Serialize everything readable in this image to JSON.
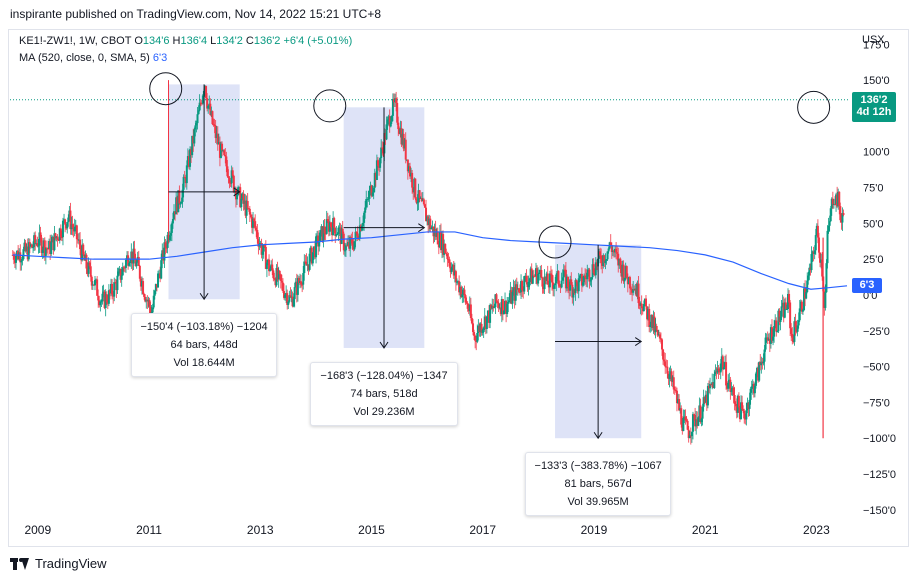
{
  "header": {
    "publisher": "inspirante published on TradingView.com, Nov 14, 2022 15:21 UTC+8"
  },
  "legend": {
    "symbol": "KE1!-ZW1!, 1W, CBOT",
    "o_label": "O",
    "o": "134'6",
    "h_label": "H",
    "h": "136'4",
    "l_label": "L",
    "l": "134'2",
    "c_label": "C",
    "c": "136'2",
    "change": "+6'4 (+5.01%)",
    "ma_label": "MA (520, close, 0, SMA, 5)",
    "ma_value": "6'3"
  },
  "currency": "USX",
  "last_price": {
    "value": "136'2",
    "countdown": "4d 12h"
  },
  "ma_tag": "6'3",
  "stats": [
    {
      "line1": "−150'4 (−103.18%) −1204",
      "line2": "64 bars, 448d",
      "line3": "Vol 18.644M"
    },
    {
      "line1": "−168'3 (−128.04%) −1347",
      "line2": "74 bars, 518d",
      "line3": "Vol 29.236M"
    },
    {
      "line1": "−133'3 (−383.78%) −1067",
      "line2": "81 bars, 567d",
      "line3": "Vol 39.965M"
    }
  ],
  "footer": {
    "brand": "TradingView"
  },
  "colors": {
    "up": "#089981",
    "down": "#f23645",
    "ma": "#2962ff",
    "range": "#d8def6",
    "price_line": "#089981"
  },
  "chart_data": {
    "type": "candlestick",
    "x_ticks": [
      "2009",
      "2011",
      "2013",
      "2015",
      "2017",
      "2019",
      "2021",
      "2023"
    ],
    "y_ticks": [
      "175'0",
      "150'0",
      "125'0",
      "100'0",
      "75'0",
      "50'0",
      "25'0",
      "0'0",
      "−25'0",
      "−50'0",
      "−75'0",
      "−100'0",
      "−125'0",
      "−150'0"
    ],
    "y_tick_values": [
      175,
      150,
      125,
      100,
      75,
      50,
      25,
      0,
      -25,
      -50,
      -75,
      -100,
      -125,
      -150
    ],
    "ylim": [
      -155,
      178
    ],
    "xlim": [
      2008.5,
      2023.55
    ],
    "price_series": [
      [
        2008.55,
        28
      ],
      [
        2008.8,
        30
      ],
      [
        2009.0,
        38
      ],
      [
        2009.2,
        32
      ],
      [
        2009.4,
        45
      ],
      [
        2009.55,
        55
      ],
      [
        2009.7,
        40
      ],
      [
        2009.85,
        22
      ],
      [
        2010.0,
        10
      ],
      [
        2010.15,
        -5
      ],
      [
        2010.3,
        0
      ],
      [
        2010.5,
        15
      ],
      [
        2010.65,
        30
      ],
      [
        2010.8,
        20
      ],
      [
        2010.95,
        -2
      ],
      [
        2011.05,
        -12
      ],
      [
        2011.15,
        10
      ],
      [
        2011.3,
        35
      ],
      [
        2011.45,
        60
      ],
      [
        2011.6,
        72
      ],
      [
        2011.75,
        100
      ],
      [
        2011.9,
        128
      ],
      [
        2012.0,
        150
      ],
      [
        2012.05,
        134
      ],
      [
        2012.15,
        118
      ],
      [
        2012.3,
        98
      ],
      [
        2012.45,
        85
      ],
      [
        2012.6,
        70
      ],
      [
        2012.75,
        60
      ],
      [
        2012.9,
        48
      ],
      [
        2013.0,
        35
      ],
      [
        2013.15,
        20
      ],
      [
        2013.3,
        12
      ],
      [
        2013.45,
        2
      ],
      [
        2013.55,
        -4
      ],
      [
        2013.65,
        5
      ],
      [
        2013.8,
        18
      ],
      [
        2013.95,
        30
      ],
      [
        2014.1,
        42
      ],
      [
        2014.25,
        50
      ],
      [
        2014.4,
        45
      ],
      [
        2014.55,
        32
      ],
      [
        2014.7,
        38
      ],
      [
        2014.85,
        55
      ],
      [
        2015.0,
        75
      ],
      [
        2015.15,
        95
      ],
      [
        2015.25,
        112
      ],
      [
        2015.35,
        128
      ],
      [
        2015.42,
        132
      ],
      [
        2015.5,
        118
      ],
      [
        2015.6,
        102
      ],
      [
        2015.7,
        85
      ],
      [
        2015.8,
        70
      ],
      [
        2015.95,
        58
      ],
      [
        2016.1,
        45
      ],
      [
        2016.25,
        38
      ],
      [
        2016.35,
        30
      ],
      [
        2016.5,
        12
      ],
      [
        2016.6,
        5
      ],
      [
        2016.75,
        -10
      ],
      [
        2016.85,
        -30
      ],
      [
        2016.95,
        -22
      ],
      [
        2017.1,
        -15
      ],
      [
        2017.25,
        -5
      ],
      [
        2017.4,
        -8
      ],
      [
        2017.55,
        0
      ],
      [
        2017.7,
        8
      ],
      [
        2017.85,
        12
      ],
      [
        2018.0,
        15
      ],
      [
        2018.15,
        8
      ],
      [
        2018.3,
        10
      ],
      [
        2018.45,
        12
      ],
      [
        2018.6,
        5
      ],
      [
        2018.75,
        8
      ],
      [
        2018.9,
        15
      ],
      [
        2019.05,
        22
      ],
      [
        2019.2,
        28
      ],
      [
        2019.3,
        35
      ],
      [
        2019.35,
        30
      ],
      [
        2019.45,
        22
      ],
      [
        2019.6,
        12
      ],
      [
        2019.75,
        5
      ],
      [
        2019.9,
        -8
      ],
      [
        2020.05,
        -20
      ],
      [
        2020.2,
        -35
      ],
      [
        2020.35,
        -55
      ],
      [
        2020.5,
        -75
      ],
      [
        2020.6,
        -90
      ],
      [
        2020.7,
        -95
      ],
      [
        2020.8,
        -88
      ],
      [
        2020.95,
        -80
      ],
      [
        2021.05,
        -70
      ],
      [
        2021.2,
        -55
      ],
      [
        2021.3,
        -45
      ],
      [
        2021.4,
        -60
      ],
      [
        2021.55,
        -75
      ],
      [
        2021.7,
        -85
      ],
      [
        2021.8,
        -70
      ],
      [
        2021.95,
        -55
      ],
      [
        2022.05,
        -40
      ],
      [
        2022.2,
        -25
      ],
      [
        2022.35,
        -15
      ],
      [
        2022.5,
        -5
      ],
      [
        2022.55,
        -30
      ],
      [
        2022.65,
        -20
      ],
      [
        2022.75,
        -5
      ],
      [
        2022.85,
        10
      ],
      [
        2022.95,
        30
      ],
      [
        2023.0,
        45
      ],
      [
        2023.1,
        20
      ],
      [
        2023.15,
        -10
      ],
      [
        2023.2,
        40
      ],
      [
        2023.3,
        70
      ],
      [
        2023.4,
        65
      ],
      [
        2023.45,
        50
      ],
      [
        2023.55,
        65
      ]
    ],
    "ma_series": [
      [
        2008.55,
        28
      ],
      [
        2009.0,
        27
      ],
      [
        2009.5,
        26
      ],
      [
        2010.0,
        25
      ],
      [
        2010.5,
        25
      ],
      [
        2011.0,
        25
      ],
      [
        2011.5,
        27
      ],
      [
        2012.0,
        30
      ],
      [
        2012.5,
        33
      ],
      [
        2013.0,
        35
      ],
      [
        2013.5,
        36
      ],
      [
        2014.0,
        37
      ],
      [
        2014.5,
        39
      ],
      [
        2015.0,
        40
      ],
      [
        2015.5,
        42
      ],
      [
        2016.0,
        44
      ],
      [
        2016.5,
        44
      ],
      [
        2017.0,
        40
      ],
      [
        2017.5,
        38
      ],
      [
        2018.0,
        37
      ],
      [
        2018.5,
        36
      ],
      [
        2019.0,
        35
      ],
      [
        2019.5,
        34
      ],
      [
        2020.0,
        33
      ],
      [
        2020.5,
        31
      ],
      [
        2021.0,
        28
      ],
      [
        2021.5,
        23
      ],
      [
        2022.0,
        15
      ],
      [
        2022.5,
        8
      ],
      [
        2022.9,
        4
      ],
      [
        2023.2,
        5
      ],
      [
        2023.55,
        6.4
      ]
    ],
    "measurements": [
      {
        "x0": 2011.35,
        "x1": 2012.63,
        "y0": -3,
        "y1": 147
      },
      {
        "x0": 2014.5,
        "x1": 2015.95,
        "y0": -37,
        "y1": 131
      },
      {
        "x0": 2018.3,
        "x1": 2019.85,
        "y0": -100,
        "y1": 35
      }
    ],
    "circles": [
      {
        "x": 2011.3,
        "y": 144
      },
      {
        "x": 2014.25,
        "y": 132
      },
      {
        "x": 2018.3,
        "y": 37
      },
      {
        "x": 2022.95,
        "y": 131
      }
    ],
    "last_value": 136.25
  }
}
